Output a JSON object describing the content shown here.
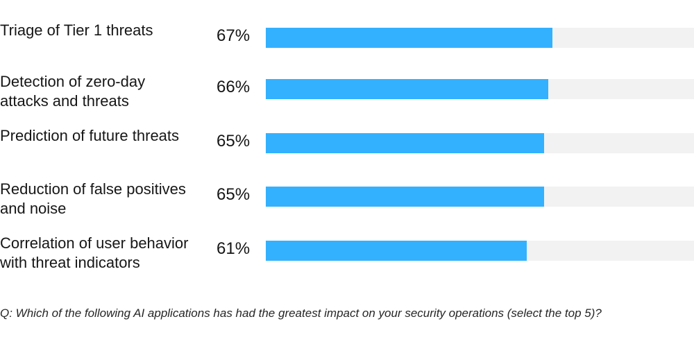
{
  "colors": {
    "bar": "#33b1ff",
    "track": "#f2f2f2"
  },
  "chart_data": {
    "type": "bar",
    "orientation": "horizontal",
    "categories": [
      "Triage of Tier 1 threats",
      "Detection of zero-day\nattacks and threats",
      "Prediction of future threats",
      "Reduction of false positives\nand noise",
      "Correlation of user behavior\nwith threat indicators"
    ],
    "values": [
      67,
      66,
      65,
      65,
      61
    ],
    "value_labels": [
      "67%",
      "66%",
      "65%",
      "65%",
      "61%"
    ],
    "xlim": [
      0,
      100
    ],
    "grid": false
  },
  "footnote": "Q: Which of the following AI applications has had the greatest impact on your security operations (select the top 5)?"
}
